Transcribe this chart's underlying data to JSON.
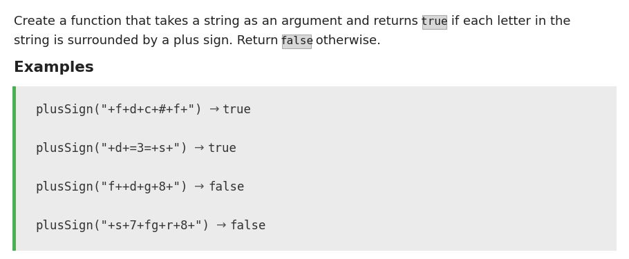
{
  "bg_color": "#f5f5f5",
  "white_bg": "#ffffff",
  "desc_line1": "Create a function that takes a string as an argument and returns ",
  "desc_true": "true",
  "desc_line1b": " if each letter in the",
  "desc_line2a": "string is surrounded by a plus sign. Return ",
  "desc_false": "false",
  "desc_line2b": " otherwise.",
  "section_title": "Examples",
  "examples_bg": "#ebebeb",
  "bar_color": "#4caf50",
  "examples": [
    {
      "code": "plusSign(\"+f+d+c+#+f+\")",
      "arrow": "→",
      "result": "true"
    },
    {
      "code": "plusSign(\"+d+=3=+s+\")",
      "arrow": "→",
      "result": "true"
    },
    {
      "code": "plusSign(\"f++d+g+8+\")",
      "arrow": "→",
      "result": "false"
    },
    {
      "code": "plusSign(\"+s+7+fg+r+8+\")",
      "arrow": "→",
      "result": "false"
    }
  ],
  "mono_font": "monospace",
  "sans_font": "DejaVu Sans",
  "desc_fontsize": 13.0,
  "code_fontsize": 12.5,
  "title_fontsize": 15.5,
  "inline_box_color": "#d8d8d8",
  "inline_box_edge": "#aaaaaa",
  "text_color": "#222222",
  "code_color": "#333333"
}
